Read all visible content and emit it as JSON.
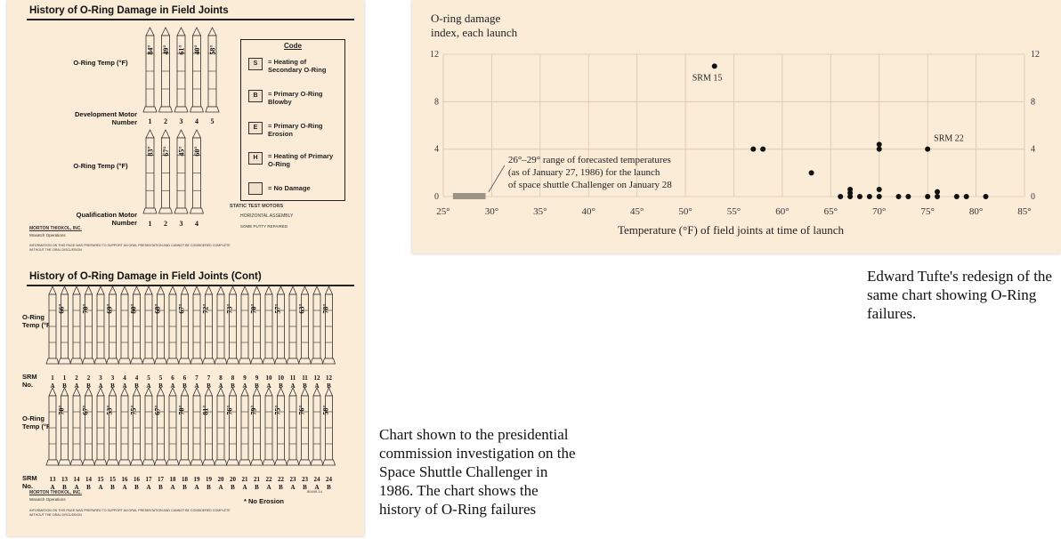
{
  "left_chart": {
    "title1": "History of O-Ring Damage in Field Joints",
    "title2": "History of O-Ring Damage in Field Joints (Cont)",
    "oring_temp_label": "O-Ring Temp (°F)",
    "dev_motor_label": "Development Motor Number",
    "qual_motor_label": "Qualification Motor Number",
    "dev_temps": [
      "84°",
      "49°",
      "61°",
      "40°",
      "58°"
    ],
    "dev_numbers": [
      "1",
      "2",
      "3",
      "4",
      "5"
    ],
    "qual_temps": [
      "83°",
      "67°",
      "45°",
      "60°"
    ],
    "qual_numbers": [
      "1",
      "2",
      "3",
      "4"
    ],
    "legend": {
      "title": "Code",
      "items": [
        {
          "symbol": "S",
          "text": "= Heating of Secondary O-Ring"
        },
        {
          "symbol": "B",
          "text": "= Primary O-Ring Blowby"
        },
        {
          "symbol": "E",
          "text": "= Primary O-Ring Erosion"
        },
        {
          "symbol": "H",
          "text": "= Heating of Primary O-Ring"
        },
        {
          "symbol": "",
          "text": "= No Damage"
        }
      ]
    },
    "static_test_label": "STATIC TEST MOTORS",
    "static_notes": [
      "HORIZONTAL ASSEMBLY",
      "SOME PUTTY REPAIRED"
    ],
    "company": "MORTON THIOKOL, INC.",
    "company_sub": "Wasatch Operations",
    "disclaimer": "INFORMATION ON THIS PAGE WAS PREPARED TO SUPPORT AN ORAL PRESENTATION AND CANNOT BE CONSIDERED COMPLETE WITHOUT THE ORAL DISCUSSION",
    "srm_label": "SRM No.",
    "row1_temps": [
      "66°",
      "70°",
      "69°",
      "80°",
      "68°",
      "67°",
      "72°",
      "73°",
      "70°",
      "57°",
      "63°",
      "78°"
    ],
    "row1_numbers": [
      "1",
      "1",
      "2",
      "2",
      "3",
      "3",
      "4",
      "4",
      "5",
      "5",
      "6",
      "6",
      "7",
      "7",
      "8",
      "8",
      "9",
      "9",
      "10",
      "10",
      "11",
      "11",
      "12",
      "12"
    ],
    "row1_letters": [
      "A",
      "B",
      "A",
      "B",
      "A",
      "B",
      "A",
      "B",
      "A",
      "B",
      "A",
      "B",
      "A",
      "B",
      "A",
      "B",
      "A",
      "B",
      "A",
      "B",
      "A",
      "B",
      "A",
      "B"
    ],
    "row2_temps": [
      "70°",
      "67°",
      "53°",
      "75°",
      "67°",
      "70°",
      "81°",
      "76°",
      "79°",
      "75°",
      "76°",
      "58°"
    ],
    "row2_numbers": [
      "13",
      "13",
      "14",
      "14",
      "15",
      "15",
      "16",
      "16",
      "17",
      "17",
      "18",
      "18",
      "19",
      "19",
      "20",
      "20",
      "21",
      "21",
      "22",
      "22",
      "23",
      "23",
      "24",
      "24"
    ],
    "row2_letters": [
      "A",
      "B",
      "A",
      "B",
      "A",
      "B",
      "A",
      "B",
      "A",
      "B",
      "A",
      "B",
      "A",
      "B",
      "A",
      "B",
      "A",
      "B",
      "A",
      "B",
      "A",
      "B",
      "A",
      "B"
    ],
    "no_erosion": "* No Erosion",
    "doc_code": "80449-14"
  },
  "left_caption": "Chart shown to the presidential commission investigation on the Space Shuttle Challenger in 1986. The chart shows the history of O-Ring failures",
  "right_caption": "Edward Tufte's redesign of the same chart showing O-Ring failures.",
  "chart_data": {
    "type": "scatter",
    "title": "O-ring damage index, each launch",
    "xlabel": "Temperature (°F) of field joints at time of launch",
    "ylabel": "O-ring damage index, each launch",
    "xlim": [
      25,
      85
    ],
    "ylim": [
      0,
      12
    ],
    "x_ticks": [
      "25°",
      "30°",
      "35°",
      "40°",
      "45°",
      "50°",
      "55°",
      "60°",
      "65°",
      "70°",
      "75°",
      "80°",
      "85°"
    ],
    "y_ticks": [
      "0",
      "4",
      "8",
      "12"
    ],
    "grid": true,
    "points": [
      {
        "x": 53,
        "y": 11,
        "label": "SRM 15"
      },
      {
        "x": 57,
        "y": 4
      },
      {
        "x": 58,
        "y": 4
      },
      {
        "x": 63,
        "y": 2
      },
      {
        "x": 66,
        "y": 0
      },
      {
        "x": 67,
        "y": 0
      },
      {
        "x": 67,
        "y": 0.3
      },
      {
        "x": 67,
        "y": 0.6
      },
      {
        "x": 68,
        "y": 0
      },
      {
        "x": 69,
        "y": 0
      },
      {
        "x": 70,
        "y": 0
      },
      {
        "x": 70,
        "y": 0.6
      },
      {
        "x": 70,
        "y": 4
      },
      {
        "x": 70,
        "y": 4.4
      },
      {
        "x": 72,
        "y": 0
      },
      {
        "x": 73,
        "y": 0
      },
      {
        "x": 75,
        "y": 0
      },
      {
        "x": 75,
        "y": 4,
        "label": "SRM 22"
      },
      {
        "x": 76,
        "y": 0
      },
      {
        "x": 76,
        "y": 0.4
      },
      {
        "x": 78,
        "y": 0
      },
      {
        "x": 79,
        "y": 0
      },
      {
        "x": 81,
        "y": 0
      }
    ],
    "forecast_range": {
      "from": 26,
      "to": 29,
      "label": "26°–29° range of forecasted temperatures (as of January 27, 1986) for the launch of space shuttle Challenger on January 28"
    },
    "colors": {
      "point": "#111111",
      "grid": "#d8c7ae",
      "forecast": "#9a9486",
      "panel": "#fbecd8"
    }
  }
}
